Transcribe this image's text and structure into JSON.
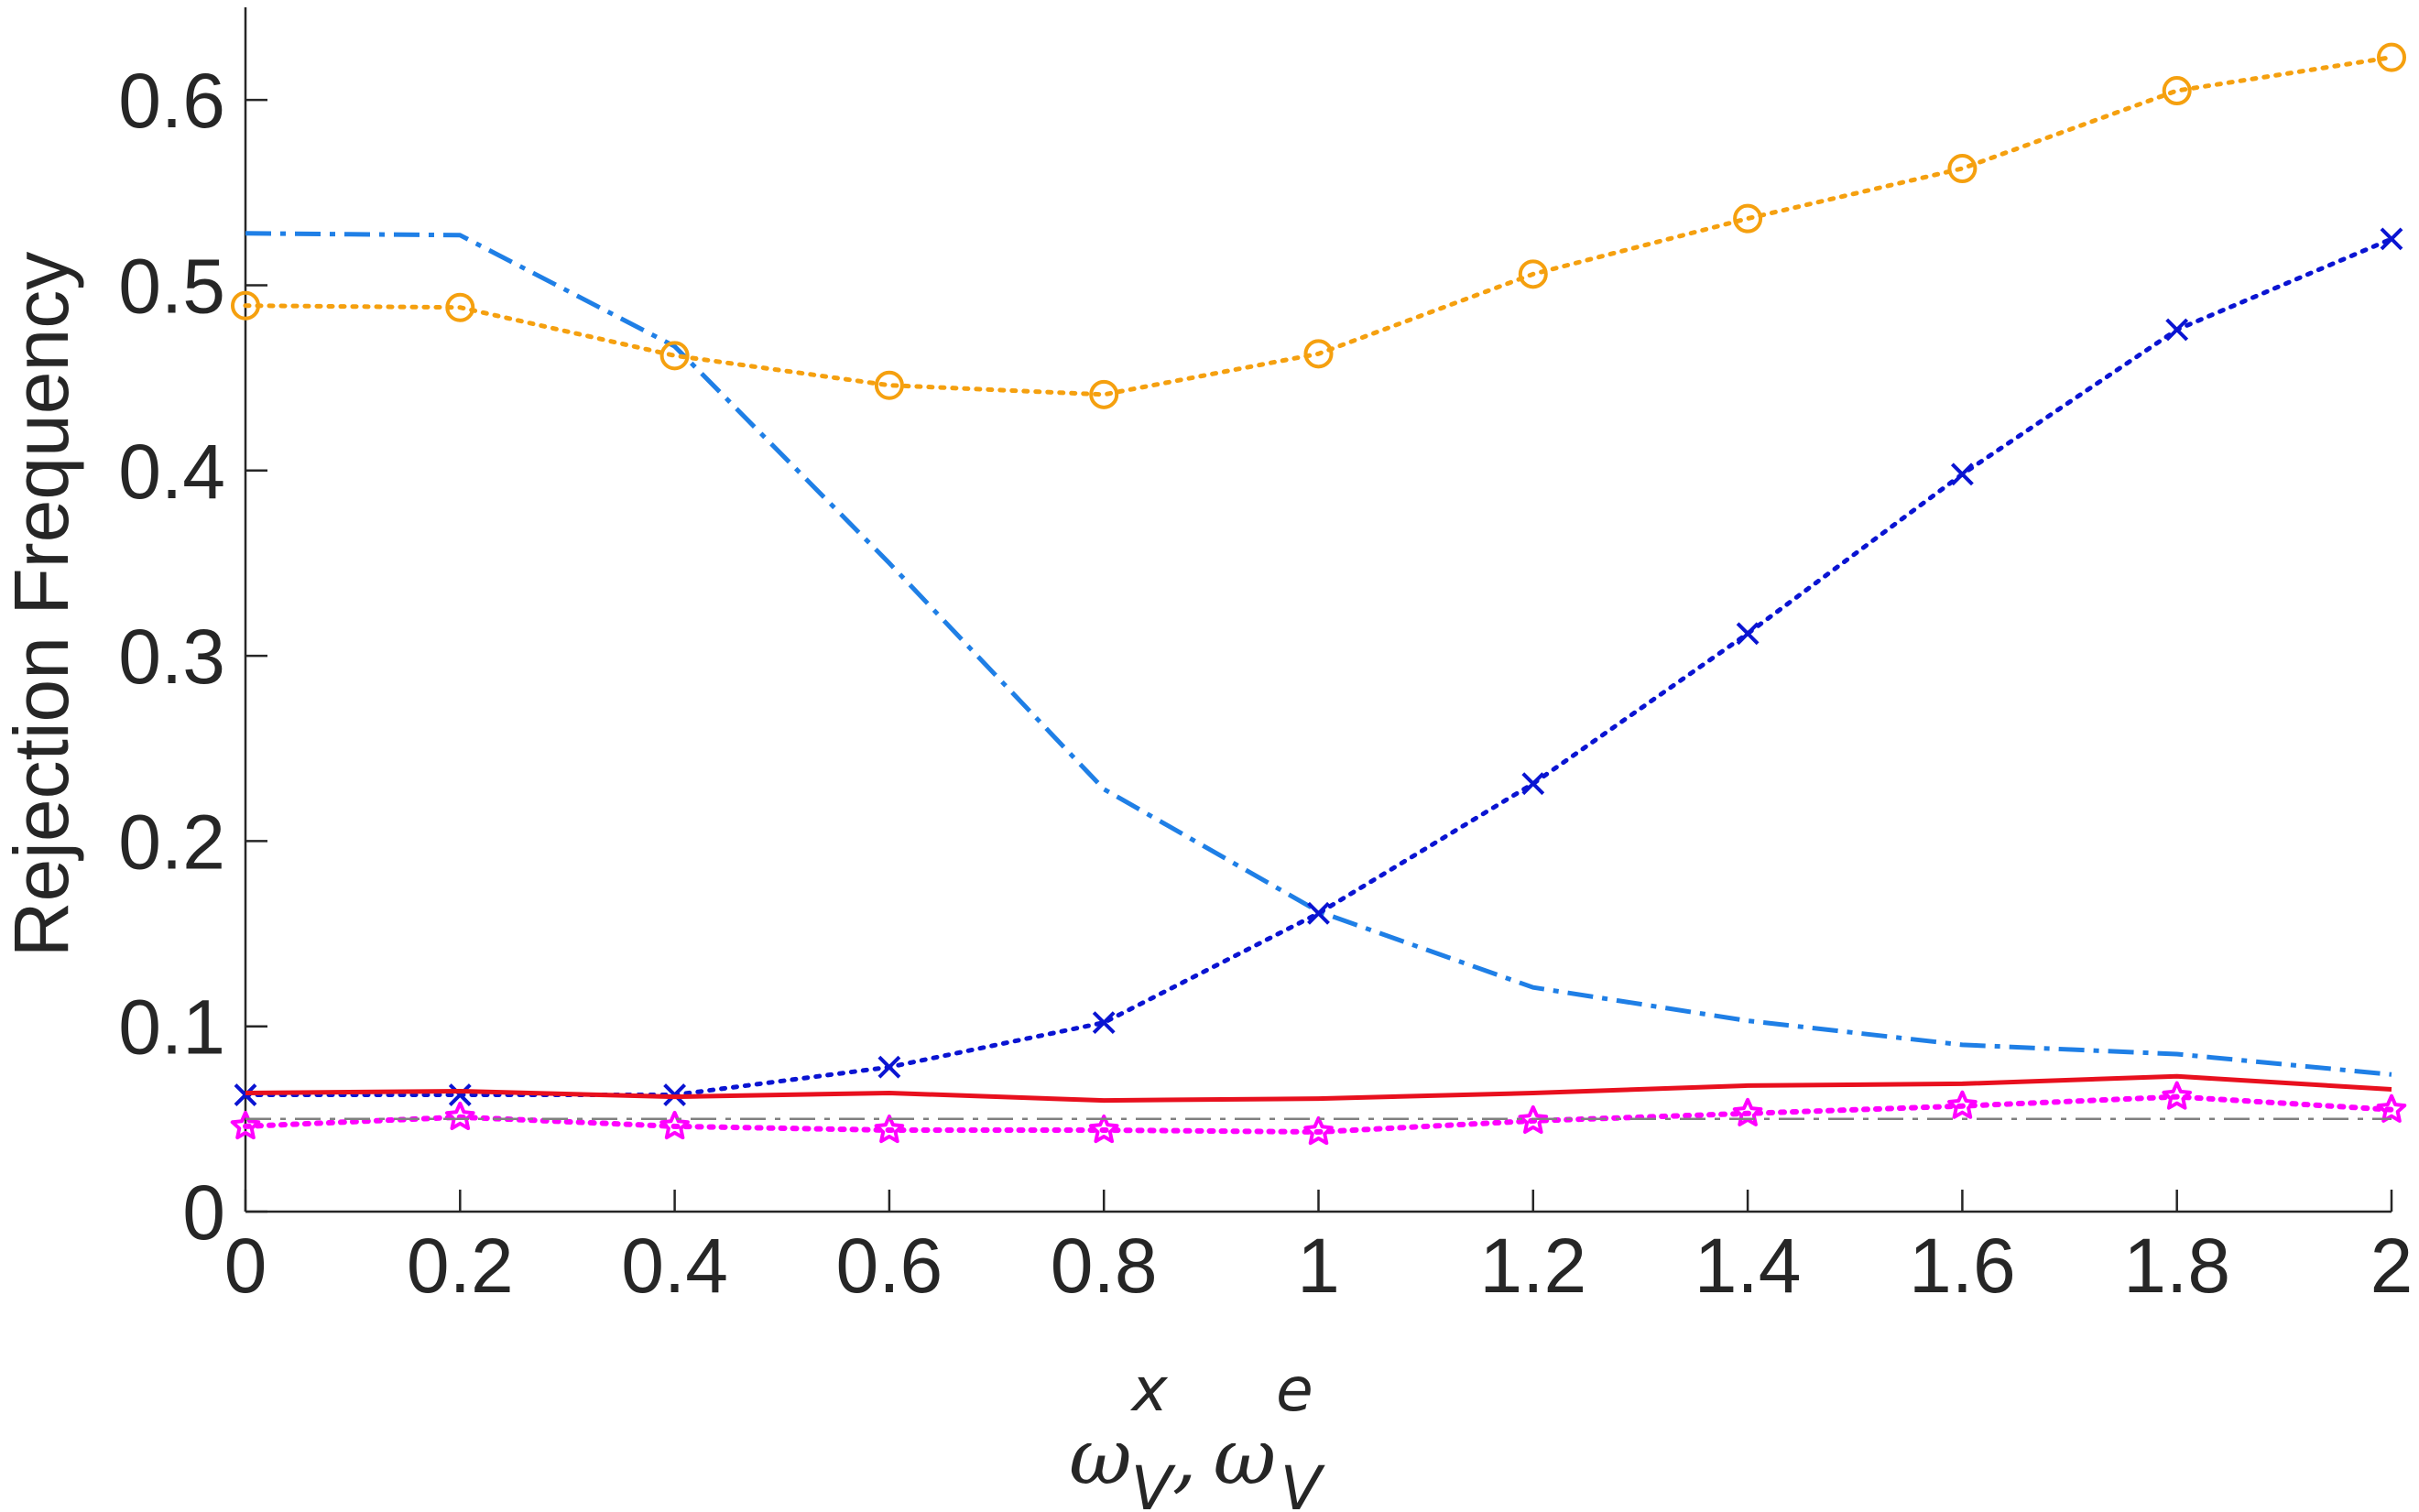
{
  "chart_data": {
    "type": "line",
    "title": "",
    "xlabel": "ωxV, ωeV",
    "xlabel_parts": {
      "omega1": "ω",
      "sup1": "x",
      "sub1": "V",
      "sep": ",",
      "omega2": "ω",
      "sup2": "e",
      "sub2": "V"
    },
    "ylabel": "Rejection Frequency",
    "xlim": [
      0,
      2
    ],
    "ylim": [
      0,
      0.65
    ],
    "xticks": [
      0,
      0.2,
      0.4,
      0.6,
      0.8,
      1,
      1.2,
      1.4,
      1.6,
      1.8,
      2
    ],
    "xtick_labels": [
      "0",
      "0.2",
      "0.4",
      "0.6",
      "0.8",
      "1",
      "1.2",
      "1.4",
      "1.6",
      "1.8",
      "2"
    ],
    "yticks": [
      0,
      0.1,
      0.2,
      0.3,
      0.4,
      0.5,
      0.6
    ],
    "ytick_labels": [
      "0",
      "0.1",
      "0.2",
      "0.3",
      "0.4",
      "0.5",
      "0.6"
    ],
    "grid": false,
    "x": [
      0,
      0.2,
      0.4,
      0.6,
      0.8,
      1,
      1.2,
      1.4,
      1.6,
      1.8,
      2
    ],
    "series": [
      {
        "color": "#1f7fe6",
        "line": "dashdot",
        "width": 5,
        "marker": "none",
        "values": [
          0.528,
          0.527,
          0.467,
          0.35,
          0.228,
          0.162,
          0.121,
          0.103,
          0.09,
          0.085,
          0.074
        ]
      },
      {
        "color": "#f5a00f",
        "line": "dotted",
        "width": 5,
        "marker": "circle",
        "values": [
          0.489,
          0.488,
          0.462,
          0.446,
          0.441,
          0.463,
          0.506,
          0.536,
          0.563,
          0.605,
          0.623
        ]
      },
      {
        "color": "#0a14d2",
        "line": "dotted",
        "width": 5,
        "marker": "x",
        "values": [
          0.063,
          0.063,
          0.063,
          0.078,
          0.102,
          0.161,
          0.231,
          0.312,
          0.398,
          0.476,
          0.525
        ]
      },
      {
        "color": "#e8101e",
        "line": "solid",
        "width": 5,
        "marker": "none",
        "values": [
          0.064,
          0.065,
          0.062,
          0.064,
          0.06,
          0.061,
          0.064,
          0.068,
          0.069,
          0.073,
          0.066
        ]
      },
      {
        "color": "#ff00ff",
        "line": "dotted",
        "width": 6,
        "marker": "star",
        "values": [
          0.046,
          0.051,
          0.046,
          0.044,
          0.044,
          0.043,
          0.049,
          0.053,
          0.057,
          0.062,
          0.055
        ]
      },
      {
        "color": "#808080",
        "line": "dashdot",
        "width": 2.5,
        "marker": "none",
        "values": [
          0.05,
          0.05,
          0.05,
          0.05,
          0.05,
          0.05,
          0.05,
          0.05,
          0.05,
          0.05,
          0.05
        ]
      }
    ]
  }
}
